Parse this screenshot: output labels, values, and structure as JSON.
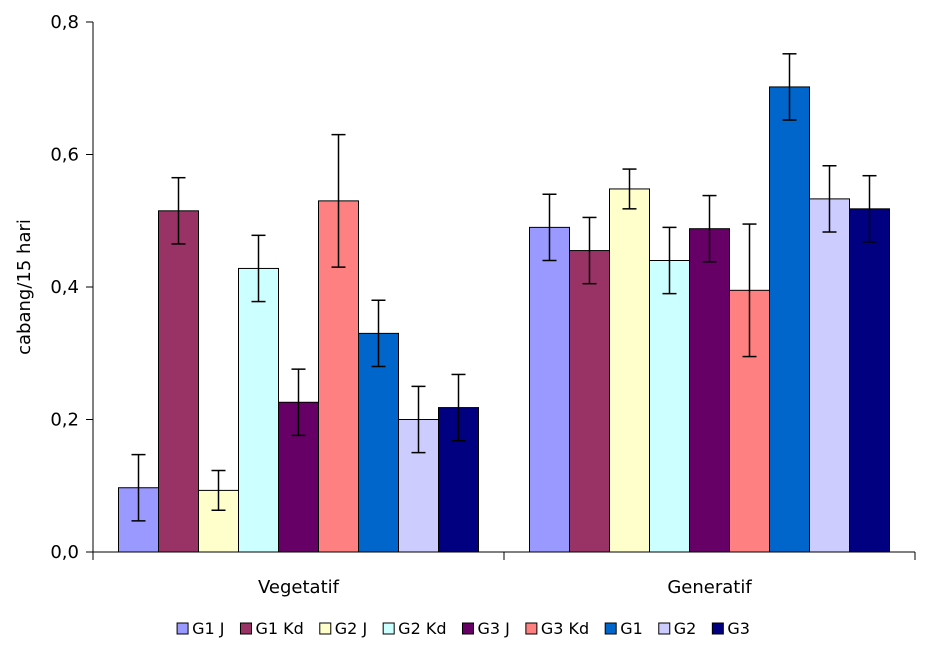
{
  "chart_data": {
    "type": "bar",
    "ylabel": "cabang/15 hari",
    "xlabel": "",
    "ylim": [
      0,
      0.8
    ],
    "yticks": [
      "0,0",
      "0,2",
      "0,4",
      "0,6",
      "0,8"
    ],
    "categories": [
      "Vegetatif",
      "Generatif"
    ],
    "legend_position": "bottom",
    "series": [
      {
        "name": "G1 J",
        "color": "#9999ff",
        "values": [
          0.097,
          0.49
        ],
        "errors": [
          0.05,
          0.05
        ]
      },
      {
        "name": "G1 Kd",
        "color": "#993366",
        "values": [
          0.515,
          0.455
        ],
        "errors": [
          0.05,
          0.05
        ]
      },
      {
        "name": "G2 J",
        "color": "#ffffcc",
        "values": [
          0.093,
          0.548
        ],
        "errors": [
          0.03,
          0.03
        ]
      },
      {
        "name": "G2 Kd",
        "color": "#ccffff",
        "values": [
          0.428,
          0.44
        ],
        "errors": [
          0.05,
          0.05
        ]
      },
      {
        "name": "G3 J",
        "color": "#660066",
        "values": [
          0.226,
          0.488
        ],
        "errors": [
          0.05,
          0.05
        ]
      },
      {
        "name": "G3 Kd",
        "color": "#ff8080",
        "values": [
          0.53,
          0.395
        ],
        "errors": [
          0.1,
          0.1
        ]
      },
      {
        "name": "G1",
        "color": "#0066cc",
        "values": [
          0.33,
          0.702
        ],
        "errors": [
          0.05,
          0.05
        ]
      },
      {
        "name": "G2",
        "color": "#ccccff",
        "values": [
          0.2,
          0.533
        ],
        "errors": [
          0.05,
          0.05
        ]
      },
      {
        "name": "G3",
        "color": "#000080",
        "values": [
          0.218,
          0.518
        ],
        "errors": [
          0.05,
          0.05
        ]
      }
    ]
  }
}
